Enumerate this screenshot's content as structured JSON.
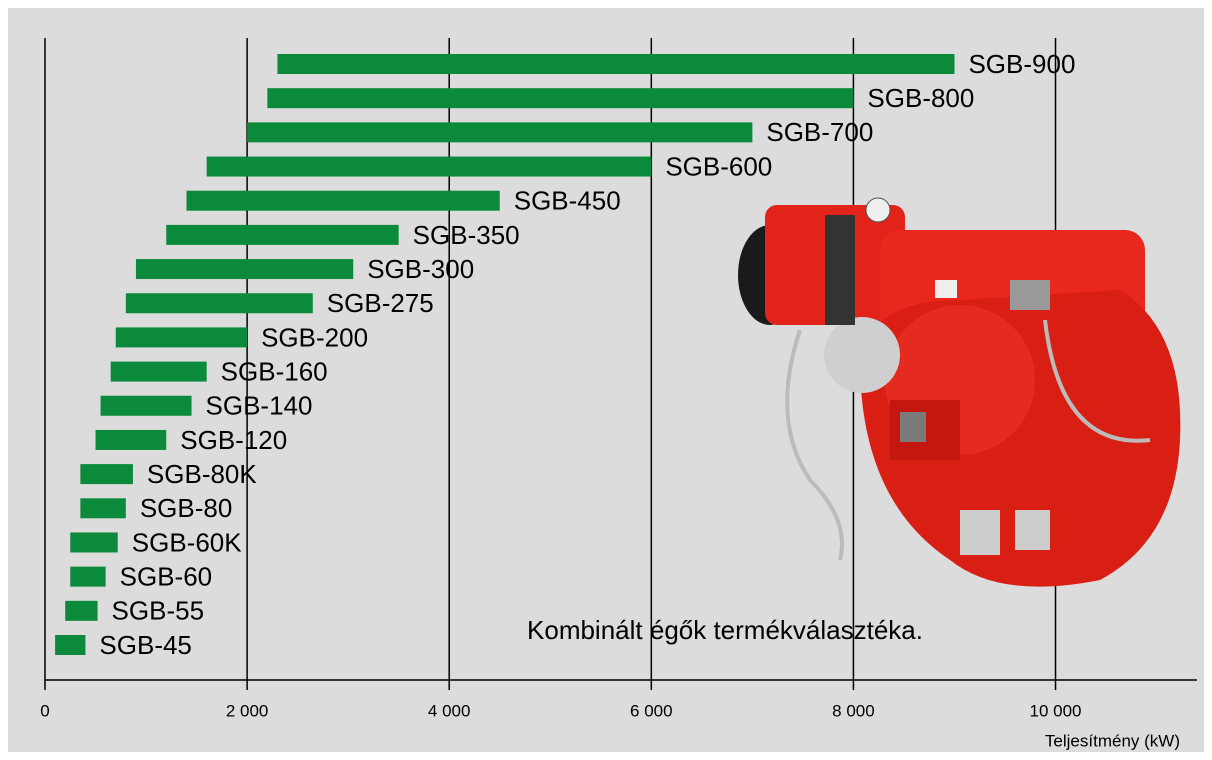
{
  "chart_data": {
    "type": "range-bar",
    "categories": [
      "SGB-900",
      "SGB-800",
      "SGB-700",
      "SGB-600",
      "SGB-450",
      "SGB-350",
      "SGB-300",
      "SGB-275",
      "SGB-200",
      "SGB-160",
      "SGB-140",
      "SGB-120",
      "SGB-80K",
      "SGB-80",
      "SGB-60K",
      "SGB-60",
      "SGB-55",
      "SGB-45"
    ],
    "start": [
      2300,
      2200,
      2000,
      1600,
      1400,
      1200,
      900,
      800,
      700,
      650,
      550,
      500,
      350,
      350,
      250,
      250,
      200,
      100
    ],
    "end": [
      9000,
      8000,
      7000,
      6000,
      4500,
      3500,
      3050,
      2650,
      2000,
      1600,
      1450,
      1200,
      870,
      800,
      720,
      600,
      520,
      400
    ],
    "color": "#0b8a3b",
    "xlim": [
      0,
      11400
    ],
    "xticks": [
      0,
      {
        "value": 2000,
        "label": "2 000"
      },
      {
        "value": 4000,
        "label": "4 000"
      },
      {
        "value": 6000,
        "label": "6 000"
      },
      {
        "value": 8000,
        "label": "8 000"
      },
      {
        "value": 10000,
        "label": "10 000"
      }
    ],
    "grid": true,
    "xlabel": "Teljesítmény (kW)",
    "annotation": "Kombinált égők termékválasztéka."
  }
}
